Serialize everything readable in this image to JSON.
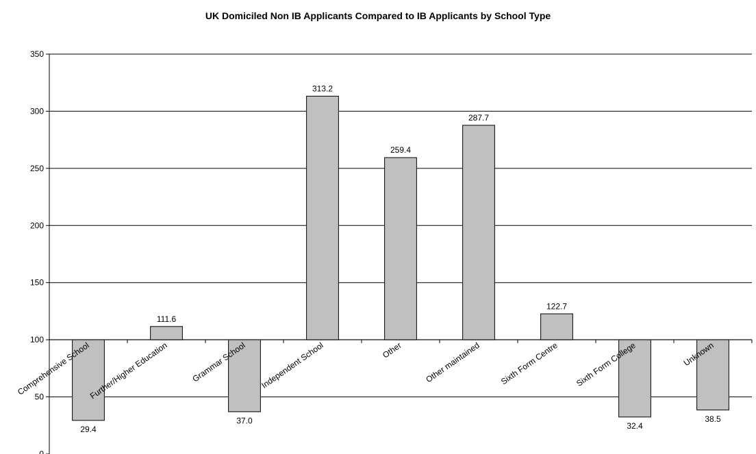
{
  "chart_data": {
    "type": "bar",
    "title": "UK Domiciled Non IB Applicants Compared to IB Applicants by School Type",
    "xlabel": "",
    "ylabel": "",
    "baseline": 100,
    "ylim": [
      0,
      350
    ],
    "yticks": [
      0,
      50,
      100,
      150,
      200,
      250,
      300,
      350
    ],
    "grid": true,
    "categories": [
      "Comprehensive School",
      "Further/Higher Education",
      "Grammar School",
      "Independent School",
      "Other",
      "Other maintained",
      "Sixth Form Centre",
      "Sixth Form College",
      "Unknown"
    ],
    "values": [
      29.4,
      111.6,
      37.0,
      313.2,
      259.4,
      287.7,
      122.7,
      32.4,
      38.5
    ],
    "data_labels": [
      "29.4",
      "111.6",
      "37.0",
      "313.2",
      "259.4",
      "287.7",
      "122.7",
      "32.4",
      "38.5"
    ],
    "bar_color": "#c0c0c0",
    "bar_stroke": "#000000"
  }
}
